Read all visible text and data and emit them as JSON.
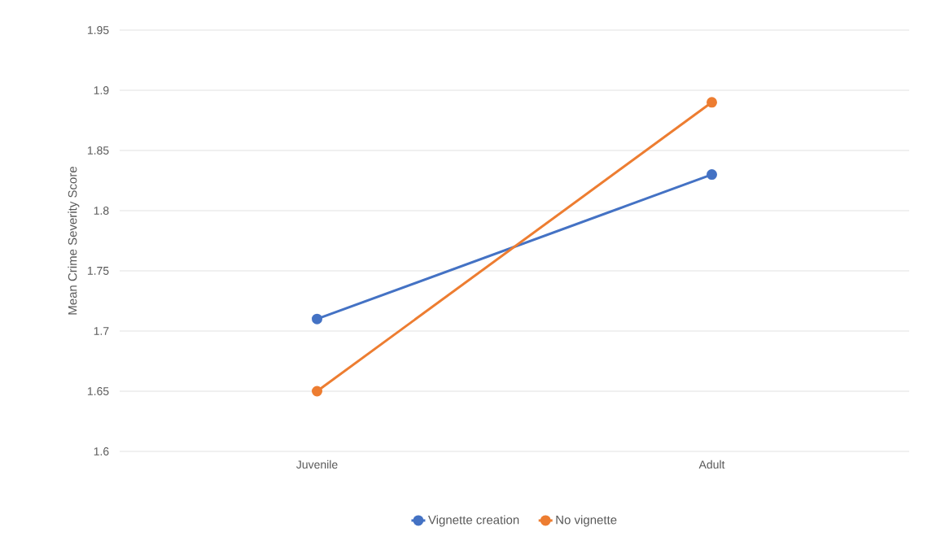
{
  "chart_data": {
    "type": "line",
    "ylabel": "Mean Crime Severity Score",
    "categories": [
      "Juvenile",
      "Adult"
    ],
    "series": [
      {
        "name": "Vignette creation",
        "color": "#4472c4",
        "values": [
          1.71,
          1.83
        ]
      },
      {
        "name": "No vignette",
        "color": "#ed7d31",
        "values": [
          1.65,
          1.89
        ]
      }
    ],
    "ylim": [
      1.6,
      1.95
    ],
    "yticks": [
      1.6,
      1.65,
      1.7,
      1.75,
      1.8,
      1.85,
      1.9,
      1.95
    ],
    "grid": "y",
    "legend": "bottom",
    "marker": "circle"
  }
}
